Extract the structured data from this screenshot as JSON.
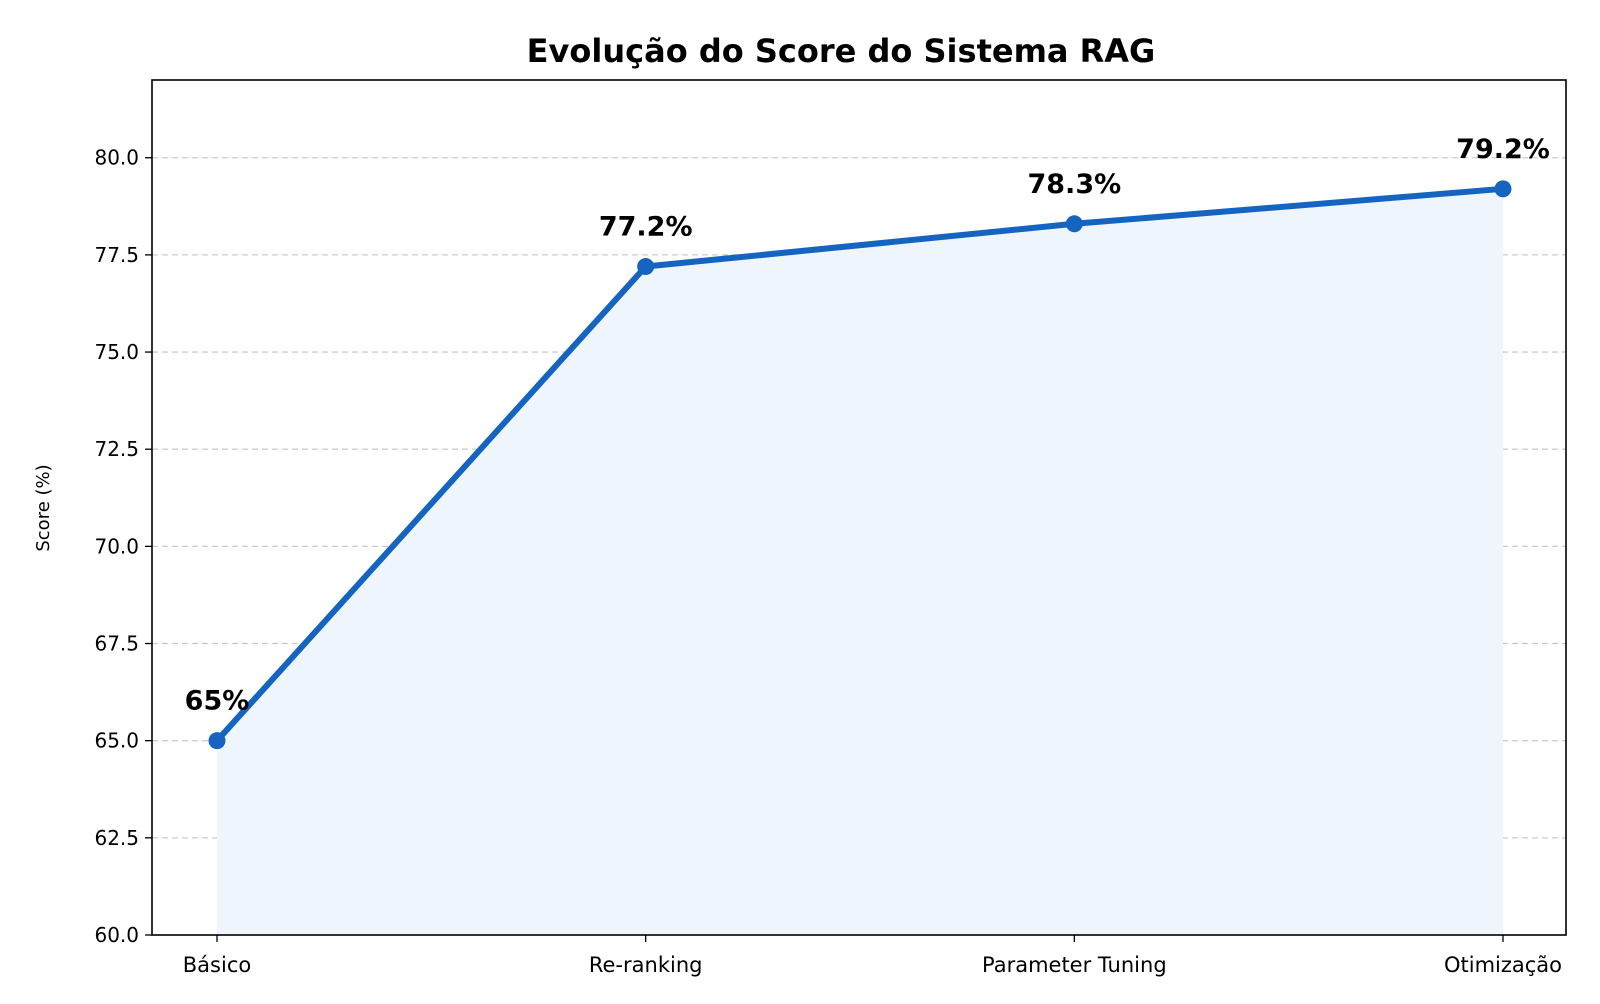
{
  "chart_data": {
    "type": "line",
    "title": "Evolução do Score do Sistema RAG",
    "xlabel": "",
    "ylabel": "Score (%)",
    "categories": [
      "Básico",
      "Re-ranking",
      "Parameter Tuning",
      "Otimização"
    ],
    "values": [
      65.0,
      77.2,
      78.3,
      79.2
    ],
    "data_labels": [
      "65%",
      "77.2%",
      "78.3%",
      "79.2%"
    ],
    "ylim": [
      60,
      82
    ],
    "yticks": [
      60.0,
      62.5,
      65.0,
      67.5,
      70.0,
      72.5,
      75.0,
      77.5,
      80.0
    ],
    "ytick_labels": [
      "60.0",
      "62.5",
      "65.0",
      "67.5",
      "70.0",
      "72.5",
      "75.0",
      "77.5",
      "80.0"
    ],
    "grid": {
      "y": true,
      "x": false,
      "style": "dashed"
    },
    "fill_under_line": true,
    "markers": true,
    "colors": {
      "line": "#1565c0",
      "fill": "#eef5fc",
      "grid": "#cccccc",
      "text": "#000000"
    }
  }
}
